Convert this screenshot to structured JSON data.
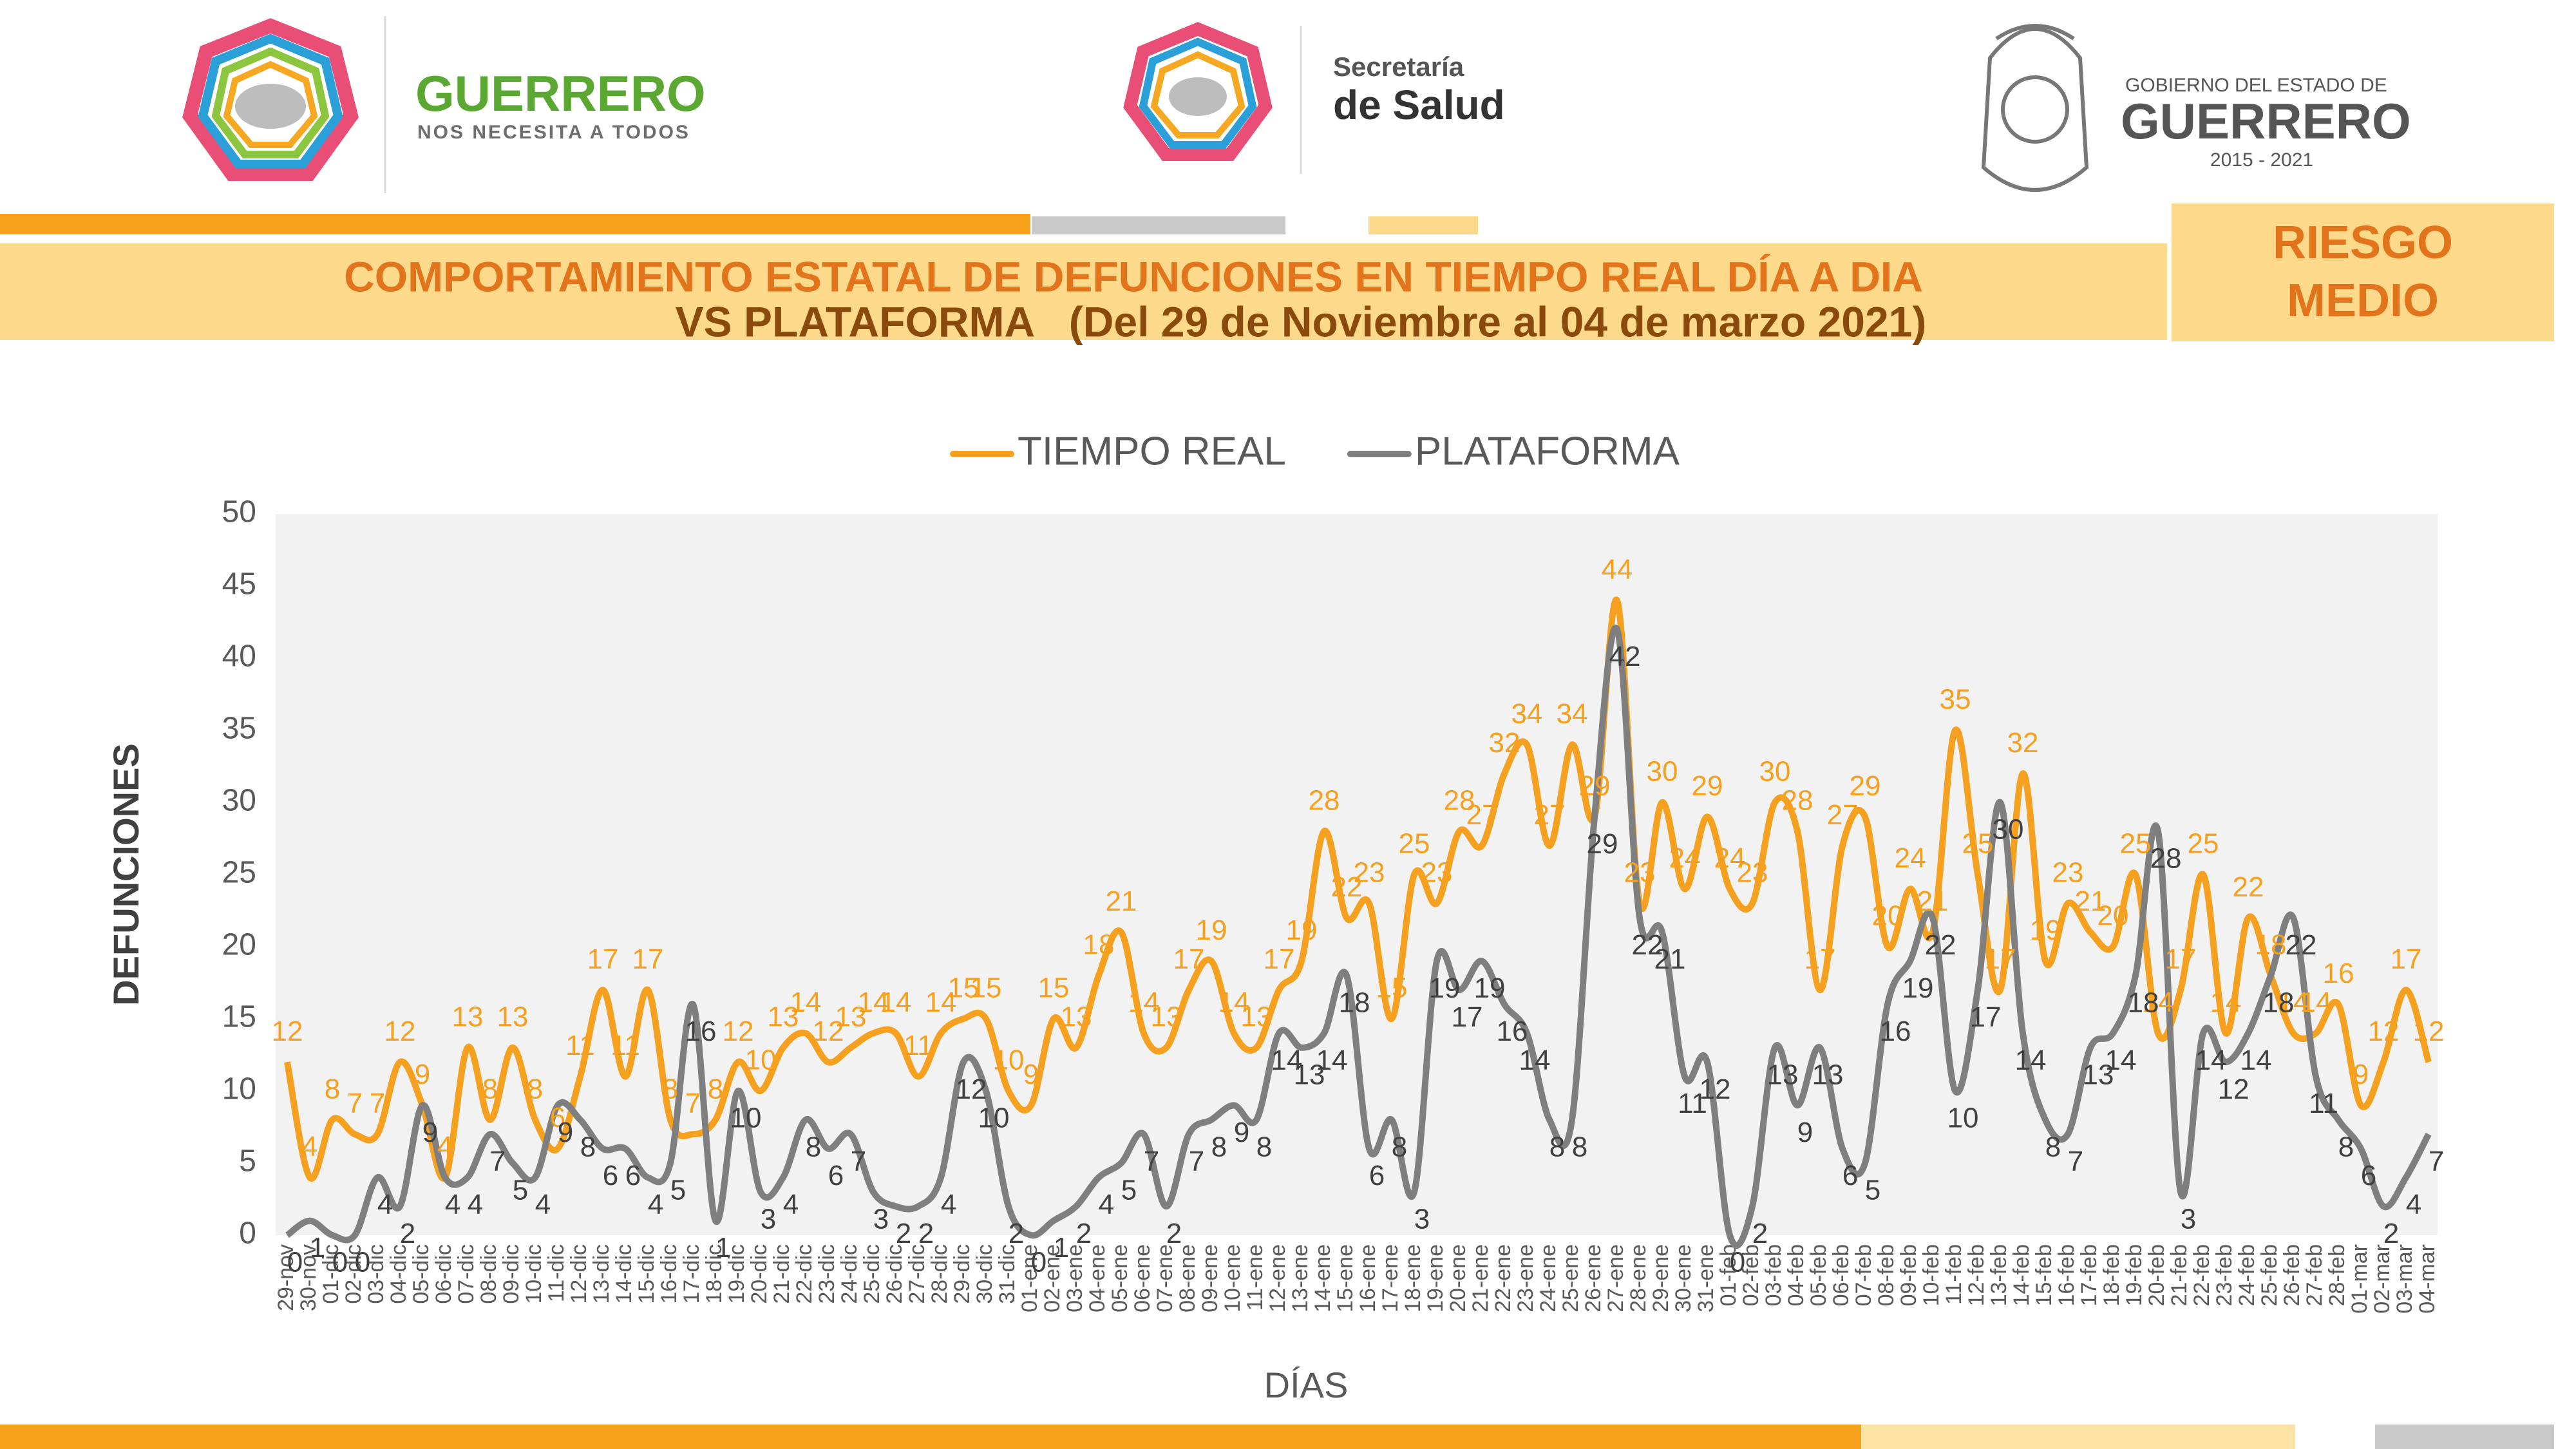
{
  "header": {
    "left_logo": {
      "title": "GUERRERO",
      "subtitle": "NOS NECESITA A TODOS"
    },
    "center_logo": {
      "line1": "Secretaría",
      "line2": "de Salud"
    },
    "right_logo": {
      "line1": "GOBIERNO DEL ESTADO DE",
      "line2": "GUERRERO",
      "line3": "2015 - 2021"
    }
  },
  "banner": {
    "title_lines": [
      "COMPORTAMIENTO ESTATAL DE DEFUNCIONES EN TIEMPO REAL DÍA A DIA",
      "VS PLATAFORMA   (Del 29 de Noviembre al 04 de marzo 2021)"
    ],
    "risk_lines": [
      "RIESGO",
      "MEDIO"
    ]
  },
  "chart_data": {
    "type": "line",
    "xlabel": "DÍAS",
    "ylabel": "DEFUNCIONES",
    "ylim": [
      0,
      50
    ],
    "yticks": [
      0,
      5,
      10,
      15,
      20,
      25,
      30,
      35,
      40,
      45,
      50
    ],
    "legend": "top",
    "categories": [
      "29-nov",
      "30-nov",
      "01-dic",
      "02-dic",
      "03-dic",
      "04-dic",
      "05-dic",
      "06-dic",
      "07-dic",
      "08-dic",
      "09-dic",
      "10-dic",
      "11-dic",
      "12-dic",
      "13-dic",
      "14-dic",
      "15-dic",
      "16-dic",
      "17-dic",
      "18-dic",
      "19-dic",
      "20-dic",
      "21-dic",
      "22-dic",
      "23-dic",
      "24-dic",
      "25-dic",
      "26-dic",
      "27-dic",
      "28-dic",
      "29-dic",
      "30-dic",
      "31-dic",
      "01-ene",
      "02-ene",
      "03-ene",
      "04-ene",
      "05-ene",
      "06-ene",
      "07-ene",
      "08-ene",
      "09-ene",
      "10-ene",
      "11-ene",
      "12-ene",
      "13-ene",
      "14-ene",
      "15-ene",
      "16-ene",
      "17-ene",
      "18-ene",
      "19-ene",
      "20-ene",
      "21-ene",
      "22-ene",
      "23-ene",
      "24-ene",
      "25-ene",
      "26-ene",
      "27-ene",
      "28-ene",
      "29-ene",
      "30-ene",
      "31-ene",
      "01-feb",
      "02-feb",
      "03-feb",
      "04-feb",
      "05-feb",
      "06-feb",
      "07-feb",
      "08-feb",
      "09-feb",
      "10-feb",
      "11-feb",
      "12-feb",
      "13-feb",
      "14-feb",
      "15-feb",
      "16-feb",
      "17-feb",
      "18-feb",
      "19-feb",
      "20-feb",
      "21-feb",
      "22-feb",
      "23-feb",
      "24-feb",
      "25-feb",
      "26-feb",
      "27-feb",
      "28-feb",
      "01-mar",
      "02-mar",
      "03-mar",
      "04-mar"
    ],
    "series": [
      {
        "name": "TIEMPO REAL",
        "color": "#f5a01f",
        "values": [
          12,
          4,
          8,
          7,
          7,
          12,
          9,
          4,
          13,
          8,
          13,
          8,
          6,
          11,
          17,
          11,
          17,
          8,
          7,
          8,
          12,
          10,
          13,
          14,
          12,
          13,
          14,
          14,
          11,
          14,
          15,
          15,
          10,
          9,
          15,
          13,
          18,
          21,
          14,
          13,
          17,
          19,
          14,
          13,
          17,
          19,
          28,
          22,
          23,
          15,
          25,
          23,
          28,
          27,
          32,
          34,
          27,
          34,
          29,
          44,
          23,
          30,
          24,
          29,
          24,
          23,
          30,
          28,
          17,
          27,
          29,
          20,
          24,
          21,
          35,
          25,
          17,
          32,
          19,
          23,
          21,
          20,
          25,
          14,
          17,
          25,
          14,
          22,
          18,
          14,
          14,
          16,
          9,
          12,
          17,
          12
        ]
      },
      {
        "name": "PLATAFORMA",
        "color": "#7f7f7f",
        "values": [
          0,
          1,
          0,
          0,
          4,
          2,
          9,
          4,
          4,
          7,
          5,
          4,
          9,
          8,
          6,
          6,
          4,
          5,
          16,
          1,
          10,
          3,
          4,
          8,
          6,
          7,
          3,
          2,
          2,
          4,
          12,
          10,
          2,
          0,
          1,
          2,
          4,
          5,
          7,
          2,
          7,
          8,
          9,
          8,
          14,
          13,
          14,
          18,
          6,
          8,
          3,
          19,
          17,
          19,
          16,
          14,
          8,
          8,
          29,
          42,
          22,
          21,
          11,
          12,
          0,
          2,
          13,
          9,
          13,
          6,
          5,
          16,
          19,
          22,
          10,
          17,
          30,
          14,
          8,
          7,
          13,
          14,
          18,
          28,
          3,
          14,
          12,
          14,
          18,
          22,
          11,
          8,
          6,
          2,
          4,
          7
        ]
      }
    ]
  }
}
